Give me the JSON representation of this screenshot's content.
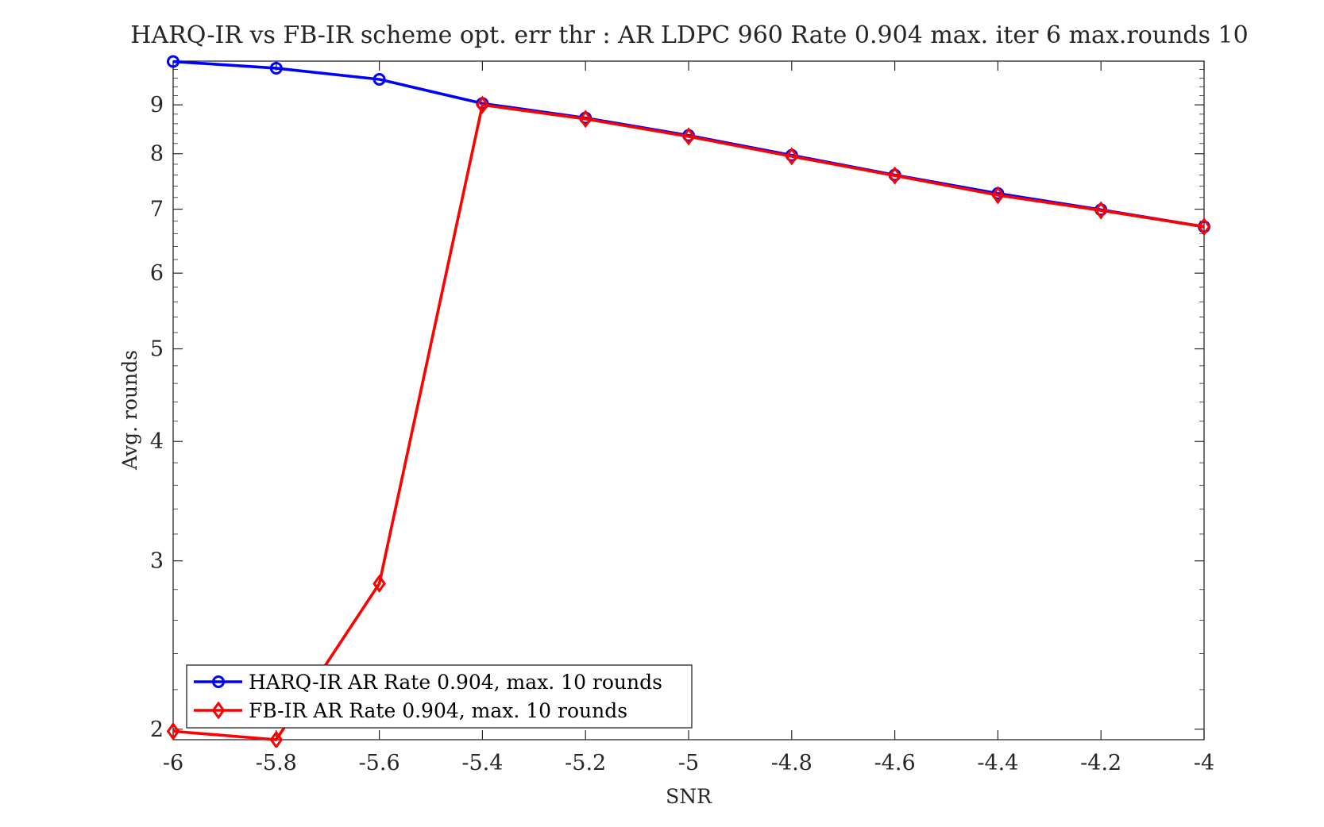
{
  "chart_data": {
    "type": "line",
    "title": "HARQ-IR vs FB-IR scheme opt. err thr : AR LDPC 960 Rate 0.904 max. iter 6 max.rounds 10",
    "xlabel": "SNR",
    "ylabel": "Avg. rounds",
    "xlim": [
      -6,
      -4
    ],
    "ylim": [
      1.95,
      10
    ],
    "yscale": "log",
    "grid": false,
    "legend_position": "bottom-left",
    "xticks": [
      -6,
      -5.8,
      -5.6,
      -5.4,
      -5.2,
      -5,
      -4.8,
      -4.6,
      -4.4,
      -4.2,
      -4
    ],
    "xtick_labels": [
      "-6",
      "-5.8",
      "-5.6",
      "-5.4",
      "-5.2",
      "-5",
      "-4.8",
      "-4.6",
      "-4.4",
      "-4.2",
      "-4"
    ],
    "yticks": [
      2,
      3,
      4,
      5,
      6,
      7,
      8,
      9
    ],
    "ytick_labels": [
      "2",
      "3",
      "4",
      "5",
      "6",
      "7",
      "8",
      "9"
    ],
    "x": [
      -6,
      -5.8,
      -5.6,
      -5.4,
      -5.2,
      -5,
      -4.8,
      -4.6,
      -4.4,
      -4.2,
      -4
    ],
    "series": [
      {
        "name": "HARQ-IR AR Rate 0.904, max. 10 rounds",
        "color": "#0000ff",
        "marker": "circle",
        "values": [
          9.99,
          9.83,
          9.57,
          9.03,
          8.72,
          8.36,
          7.97,
          7.6,
          7.27,
          6.99,
          6.71
        ]
      },
      {
        "name": "FB-IR AR Rate 0.904, max. 10 rounds",
        "color": "#ff0000",
        "marker": "diamond",
        "values": [
          1.99,
          1.95,
          2.84,
          9.0,
          8.7,
          8.34,
          7.95,
          7.59,
          7.24,
          6.98,
          6.71
        ]
      }
    ]
  }
}
